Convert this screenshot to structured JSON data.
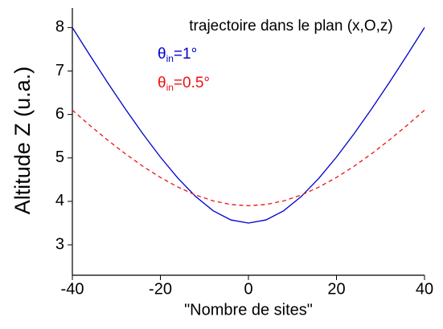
{
  "chart_data": {
    "type": "line",
    "annotation": "trajectoire dans le plan (x,O,z)",
    "xlabel": "\"Nombre de sites\"",
    "ylabel": "Altitude Z (u.a.)",
    "x": [
      -40,
      -36,
      -32,
      -28,
      -24,
      -20,
      -16,
      -12,
      -8,
      -4,
      0,
      4,
      8,
      12,
      16,
      20,
      24,
      28,
      32,
      36,
      40
    ],
    "series": [
      {
        "name": "θin=1°",
        "color": "#0000cc",
        "dash": false,
        "values": [
          8.0,
          7.36,
          6.735,
          6.132,
          5.557,
          5.019,
          4.531,
          4.112,
          3.784,
          3.573,
          3.5,
          3.573,
          3.784,
          4.112,
          4.531,
          5.019,
          5.557,
          6.132,
          6.735,
          7.36,
          8.0
        ]
      },
      {
        "name": "θin=0.5°",
        "color": "#ee1111",
        "dash": true,
        "values": [
          6.1,
          5.747,
          5.412,
          5.098,
          4.809,
          4.551,
          4.328,
          4.146,
          4.011,
          3.928,
          3.9,
          3.928,
          4.011,
          4.146,
          4.328,
          4.551,
          4.809,
          5.098,
          5.412,
          5.747,
          6.1
        ]
      }
    ],
    "xlim": [
      -40,
      40
    ],
    "xticks": [
      -40,
      -20,
      0,
      20,
      40
    ],
    "ylim": [
      2.3,
      8.45
    ],
    "yticks": [
      3,
      4,
      5,
      6,
      7,
      8
    ]
  }
}
